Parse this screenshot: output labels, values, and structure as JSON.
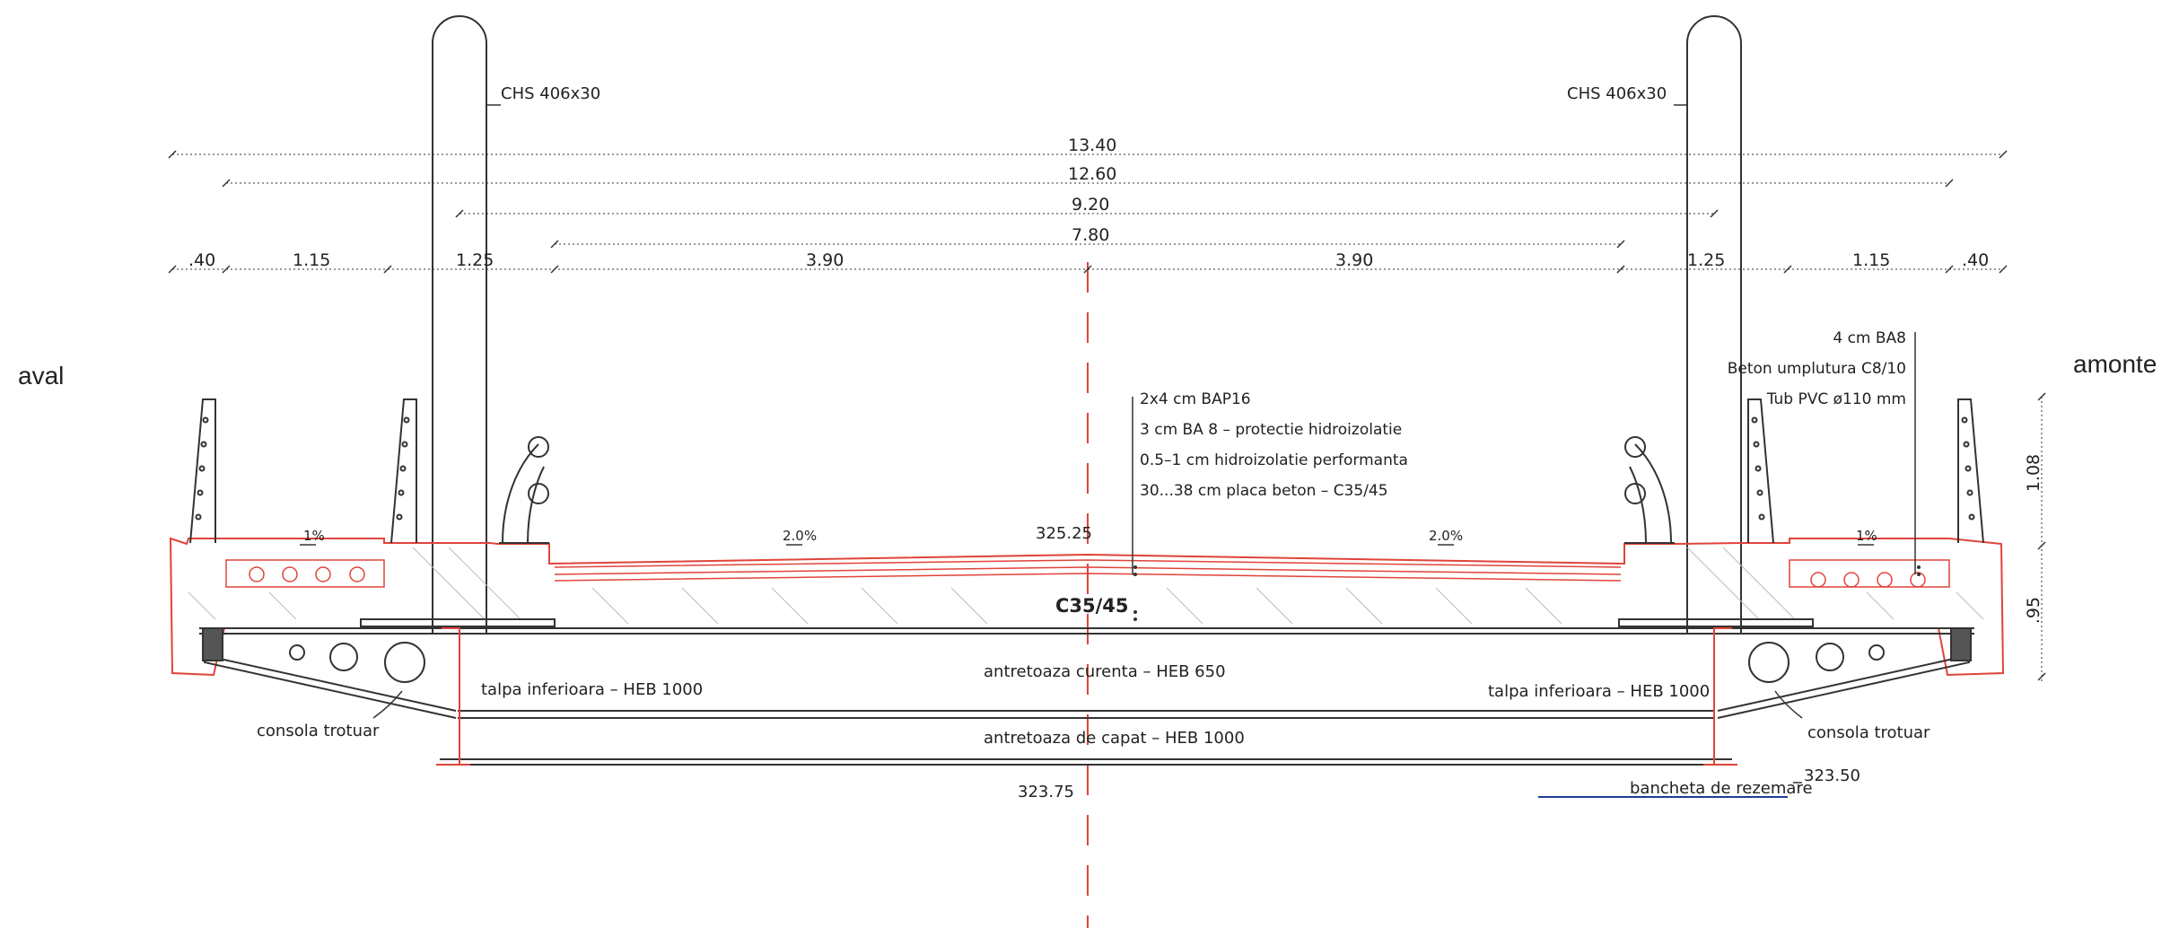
{
  "sides": {
    "left": "aval",
    "right": "amonte"
  },
  "pylon_label": "CHS 406x30",
  "dimensions": {
    "total": "13.40",
    "rail_to_rail": "12.60",
    "between_pylons": "9.20",
    "carriageway": "7.80",
    "half_lane": "3.90",
    "pylon_zone": "1.25",
    "sidewalk": "1.15",
    "edge": ".40",
    "railing_height": "1.08",
    "slab_depth": ".95"
  },
  "deck_layers": [
    "2x4 cm BAP16",
    "3 cm BA 8 – protectie hidroizolatie",
    "0.5–1 cm hidroizolatie performanta",
    "30...38 cm placa beton – C35/45"
  ],
  "sidewalk_layers": [
    "4 cm BA8",
    "Beton umplutura C8/10",
    "Tub PVC ø110 mm"
  ],
  "slopes": {
    "sidewalk": "1%",
    "roadway": "2.0%"
  },
  "elevations": {
    "top_axis": "325.25",
    "bottom_axis": "323.75",
    "bearing": "323.50"
  },
  "concrete_class": "C35/45",
  "members": {
    "cross_beam_current": "antretoaza curenta – HEB 650",
    "cross_beam_end": "antretoaza de capat – HEB 1000",
    "bottom_flange": "talpa inferioara – HEB 1000",
    "sidewalk_bracket": "consola trotuar",
    "bearing_seat": "bancheta de rezemare"
  }
}
